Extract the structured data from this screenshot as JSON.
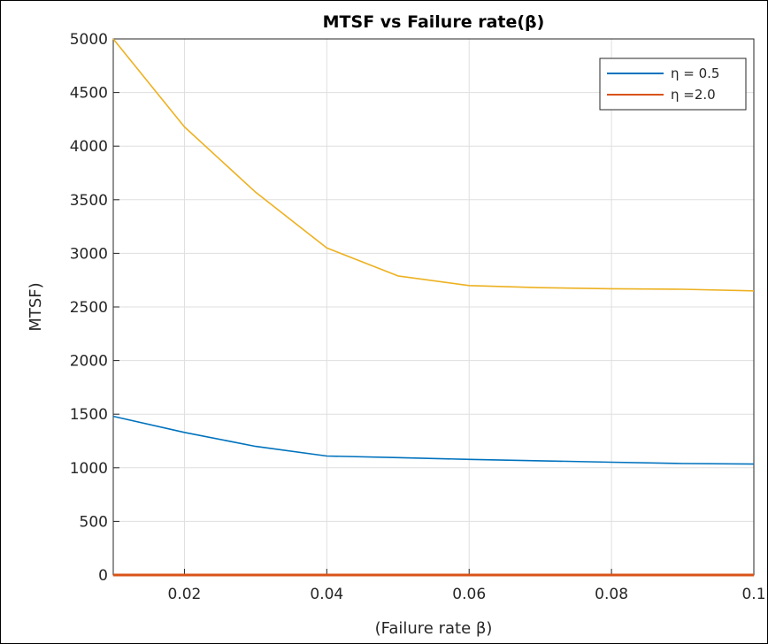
{
  "chart_data": {
    "type": "line",
    "title": "MTSF vs Failure rate(β)",
    "xlabel": "(Failure rate β)",
    "ylabel": "MTSF)",
    "xlim": [
      0.01,
      0.1
    ],
    "ylim": [
      0,
      5000
    ],
    "x_ticks": [
      0.02,
      0.04,
      0.06,
      0.08,
      0.1
    ],
    "x_tick_labels": [
      "0.02",
      "0.04",
      "0.06",
      "0.08",
      "0.1"
    ],
    "y_ticks": [
      0,
      500,
      1000,
      1500,
      2000,
      2500,
      3000,
      3500,
      4000,
      4500,
      5000
    ],
    "y_tick_labels": [
      "0",
      "500",
      "1000",
      "1500",
      "2000",
      "2500",
      "3000",
      "3500",
      "4000",
      "4500",
      "5000"
    ],
    "grid": true,
    "legend_position": "top-right",
    "series": [
      {
        "name": "η = 0.5",
        "color": "#0072BD",
        "x": [
          0.01,
          0.02,
          0.03,
          0.04,
          0.05,
          0.06,
          0.07,
          0.08,
          0.09,
          0.1
        ],
        "y": [
          1480,
          1330,
          1200,
          1110,
          1095,
          1078,
          1065,
          1052,
          1040,
          1035
        ]
      },
      {
        "name": "η =2.0",
        "color": "#D95319",
        "x": [
          0.01,
          0.1
        ],
        "y": [
          0,
          0
        ]
      },
      {
        "name": "",
        "color": "#EDB120",
        "x": [
          0.01,
          0.02,
          0.03,
          0.04,
          0.05,
          0.06,
          0.07,
          0.08,
          0.09,
          0.1
        ],
        "y": [
          5000,
          4180,
          3570,
          3050,
          2790,
          2700,
          2680,
          2670,
          2665,
          2650
        ]
      }
    ]
  }
}
